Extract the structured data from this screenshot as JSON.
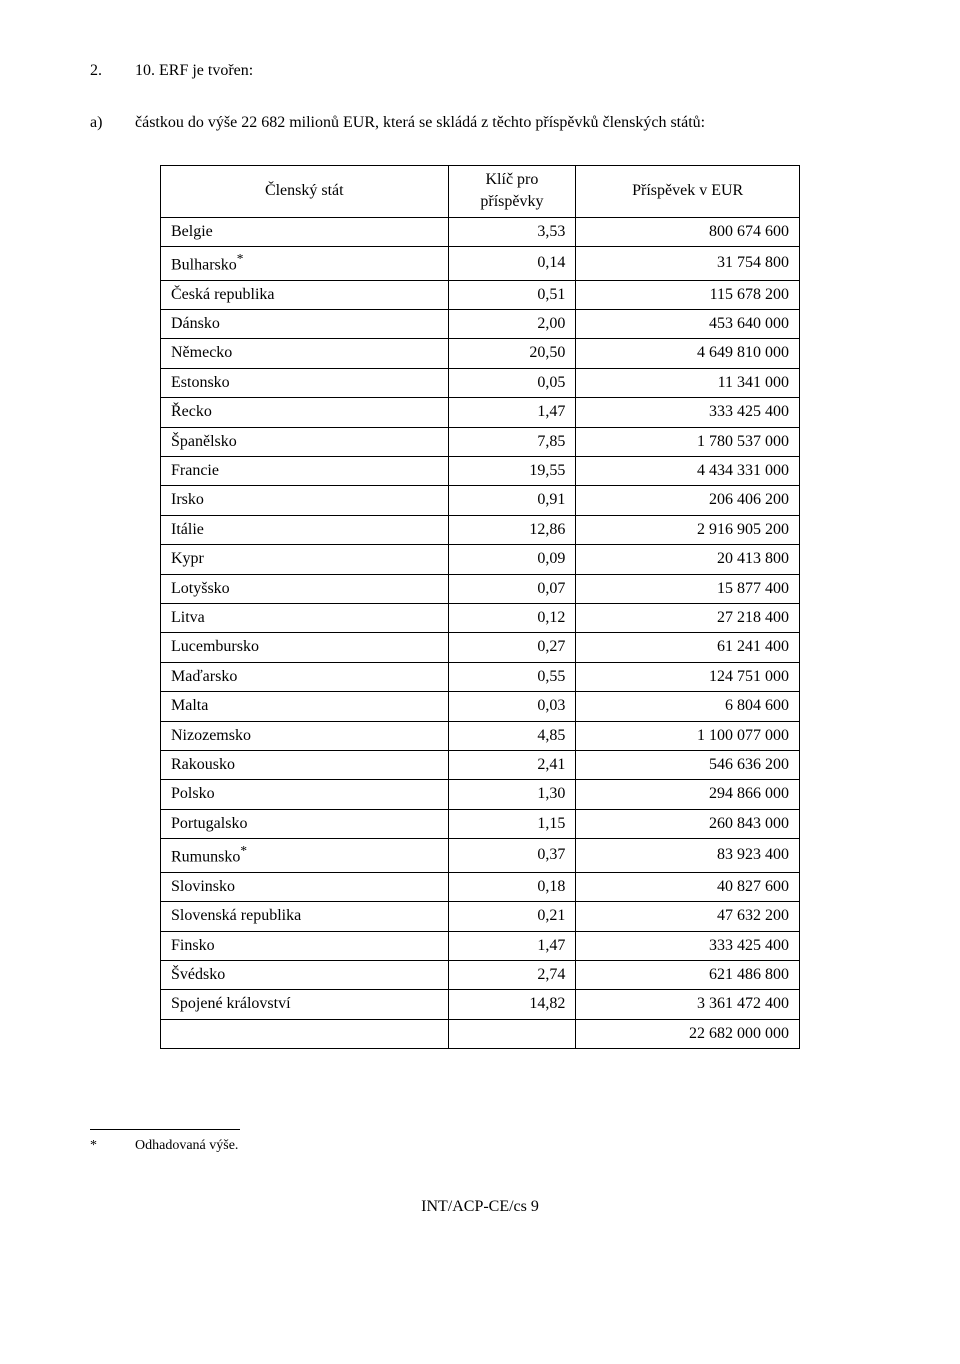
{
  "para1": {
    "number": "2.",
    "text": "10. ERF je tvořen:"
  },
  "para2": {
    "label": "a)",
    "text": "částkou do výše 22 682 milionů EUR, která se skládá z těchto příspěvků členských států:"
  },
  "table": {
    "headers": [
      "Členský stát",
      "Klíč pro příspěvky",
      "Příspěvek v EUR"
    ],
    "rows": [
      {
        "c": "Belgie",
        "k": "3,53",
        "v": "800 674 600"
      },
      {
        "c": "Bulharsko*",
        "k": "0,14",
        "v": "31 754 800"
      },
      {
        "c": "Česká republika",
        "k": "0,51",
        "v": "115 678 200"
      },
      {
        "c": "Dánsko",
        "k": "2,00",
        "v": "453 640 000"
      },
      {
        "c": "Německo",
        "k": "20,50",
        "v": "4 649 810 000"
      },
      {
        "c": "Estonsko",
        "k": "0,05",
        "v": "11 341 000"
      },
      {
        "c": "Řecko",
        "k": "1,47",
        "v": "333 425 400"
      },
      {
        "c": "Španělsko",
        "k": "7,85",
        "v": "1 780 537 000"
      },
      {
        "c": "Francie",
        "k": "19,55",
        "v": "4 434 331 000"
      },
      {
        "c": "Irsko",
        "k": "0,91",
        "v": "206 406 200"
      },
      {
        "c": "Itálie",
        "k": "12,86",
        "v": "2 916 905 200"
      },
      {
        "c": "Kypr",
        "k": "0,09",
        "v": "20 413 800"
      },
      {
        "c": "Lotyšsko",
        "k": "0,07",
        "v": "15 877 400"
      },
      {
        "c": "Litva",
        "k": "0,12",
        "v": "27 218 400"
      },
      {
        "c": "Lucembursko",
        "k": "0,27",
        "v": "61 241 400"
      },
      {
        "c": "Maďarsko",
        "k": "0,55",
        "v": "124 751 000"
      },
      {
        "c": "Malta",
        "k": "0,03",
        "v": "6 804 600"
      },
      {
        "c": "Nizozemsko",
        "k": "4,85",
        "v": "1 100 077 000"
      },
      {
        "c": "Rakousko",
        "k": "2,41",
        "v": "546 636 200"
      },
      {
        "c": "Polsko",
        "k": "1,30",
        "v": "294 866 000"
      },
      {
        "c": "Portugalsko",
        "k": "1,15",
        "v": "260 843 000"
      },
      {
        "c": "Rumunsko*",
        "k": "0,37",
        "v": "83 923 400"
      },
      {
        "c": "Slovinsko",
        "k": "0,18",
        "v": "40 827 600"
      },
      {
        "c": "Slovenská republika",
        "k": "0,21",
        "v": "47 632 200"
      },
      {
        "c": "Finsko",
        "k": "1,47",
        "v": "333 425 400"
      },
      {
        "c": "Švédsko",
        "k": "2,74",
        "v": "621 486 800"
      },
      {
        "c": "Spojené království",
        "k": "14,82",
        "v": "3 361 472 400"
      }
    ],
    "total": "22 682 000 000"
  },
  "footnote": {
    "mark": "*",
    "text": "Odhadovaná výše."
  },
  "footer": "INT/ACP-CE/cs 9"
}
